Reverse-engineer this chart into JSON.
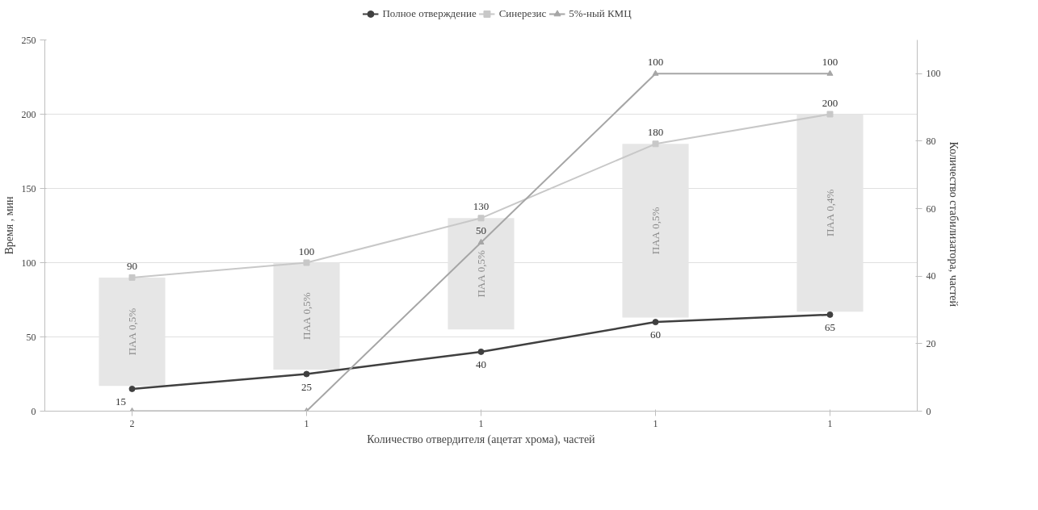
{
  "chart_data": {
    "type": "line",
    "categories": [
      "2",
      "1",
      "1",
      "1",
      "1"
    ],
    "xlabel": "Количество отвердителя (ацетат хрома), частей",
    "ylabel": "Время , мин",
    "y2label": "Количество стабилизатора,  частей",
    "ylim": [
      0,
      250
    ],
    "yticks": [
      0,
      50,
      100,
      150,
      200,
      250
    ],
    "y2lim": [
      0,
      110
    ],
    "y2ticks": [
      0,
      20,
      40,
      60,
      80,
      100
    ],
    "grid": "y",
    "legend": "top",
    "line_style": "solid",
    "series": [
      {
        "type": "bar",
        "color": "#e6e6e6",
        "base": [
          17,
          28,
          55,
          63,
          67
        ],
        "values": [
          73,
          72,
          75,
          117,
          133
        ],
        "value_labels": [
          "ПАА 0,5%",
          "ПАА 0,5%",
          "ПАА 0,5%",
          "ПАА 0,5%",
          "ПАА 0,4%"
        ]
      },
      {
        "name": "Полное отверждение",
        "color": "#404040",
        "marker": "circle",
        "values": [
          15,
          25,
          40,
          60,
          65
        ],
        "value_labels": [
          "15",
          "25",
          "40",
          "60",
          "65"
        ]
      },
      {
        "name": "Синерезис",
        "color": "#c8c8c8",
        "marker": "square",
        "values": [
          90,
          100,
          130,
          180,
          200
        ],
        "value_labels": [
          "90",
          "100",
          "130",
          "180",
          "200"
        ]
      },
      {
        "name": "5%-ный КМЦ",
        "axis": "y2",
        "color": "#a6a6a6",
        "marker": "triangle",
        "values": [
          0,
          0,
          50,
          100,
          100
        ],
        "value_labels": [
          null,
          null,
          "50",
          "100",
          "100"
        ]
      }
    ]
  }
}
